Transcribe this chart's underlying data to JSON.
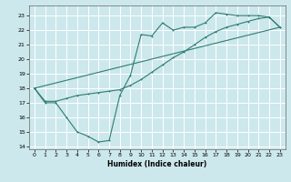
{
  "title": "",
  "xlabel": "Humidex (Indice chaleur)",
  "ylabel": "",
  "bg_color": "#cce8ec",
  "grid_color": "#ffffff",
  "line_color": "#2e7d70",
  "xlim": [
    -0.5,
    23.5
  ],
  "ylim": [
    13.8,
    23.7
  ],
  "yticks": [
    14,
    15,
    16,
    17,
    18,
    19,
    20,
    21,
    22,
    23
  ],
  "xticks": [
    0,
    1,
    2,
    3,
    4,
    5,
    6,
    7,
    8,
    9,
    10,
    11,
    12,
    13,
    14,
    15,
    16,
    17,
    18,
    19,
    20,
    21,
    22,
    23
  ],
  "line1_x": [
    0,
    1,
    2,
    3,
    4,
    5,
    6,
    7,
    8,
    9,
    10,
    11,
    12,
    13,
    14,
    15,
    16,
    17,
    18,
    19,
    20,
    21,
    22,
    23
  ],
  "line1_y": [
    18,
    17,
    17,
    16,
    15,
    14.7,
    14.3,
    14.4,
    17.5,
    18.9,
    21.7,
    21.6,
    22.5,
    22.0,
    22.2,
    22.2,
    22.5,
    23.2,
    23.1,
    23.0,
    23.0,
    23.0,
    22.9,
    22.2
  ],
  "line2_x": [
    0,
    1,
    2,
    3,
    4,
    5,
    6,
    7,
    8,
    9,
    10,
    11,
    12,
    13,
    14,
    15,
    16,
    17,
    18,
    19,
    20,
    21,
    22,
    23
  ],
  "line2_y": [
    18,
    17.1,
    17.1,
    17.3,
    17.5,
    17.6,
    17.7,
    17.8,
    17.9,
    18.2,
    18.6,
    19.1,
    19.6,
    20.1,
    20.5,
    21.0,
    21.5,
    21.9,
    22.2,
    22.4,
    22.6,
    22.8,
    22.9,
    22.2
  ],
  "line3_x": [
    0,
    23
  ],
  "line3_y": [
    18,
    22.2
  ]
}
